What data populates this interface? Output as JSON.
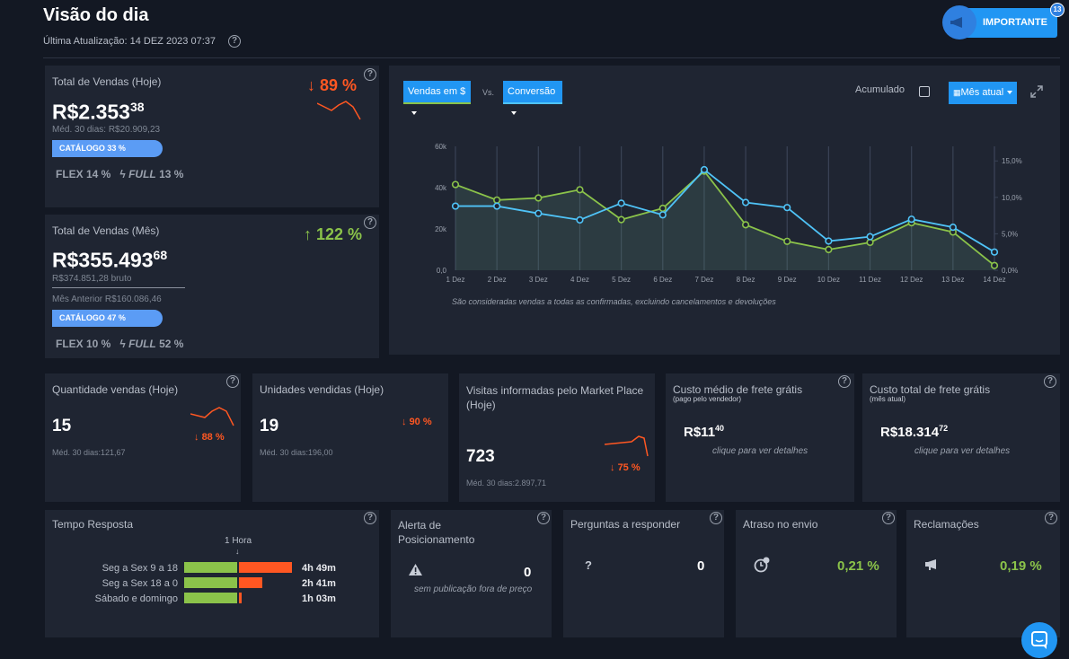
{
  "header": {
    "title": "Visão do dia",
    "updated": "Última Atualização: 14 DEZ 2023 07:37",
    "importante_label": "IMPORTANTE",
    "importante_badge": "13"
  },
  "sales_today": {
    "title": "Total de Vendas (Hoje)",
    "value_main": "R$2.353",
    "value_cents": "38",
    "avg": "Méd. 30 dias: R$20.909,23",
    "change": "89 %",
    "catalog": "CATÁLOGO 33 %",
    "catalog_level": 0.33,
    "flex": "FLEX 14 %",
    "full_label": "FULL",
    "full_value": "13 %"
  },
  "sales_month": {
    "title": "Total de Vendas (Mês)",
    "value_main": "R$355.493",
    "value_cents": "68",
    "gross": "R$374.851,28 bruto",
    "prev": "Mês Anterior R$160.086,46",
    "change": "122 %",
    "catalog": "CATÁLOGO 47 %",
    "catalog_level": 0.47,
    "flex": "FLEX 10 %",
    "full_label": "FULL",
    "full_value": "52 %"
  },
  "chart_controls": {
    "vendas_label": "Vendas em $",
    "vs_label": "Vs.",
    "conversao_label": "Conversão",
    "acumulado_label": "Acumulado",
    "period_label": "Mês atual",
    "note": "São consideradas vendas a todas as confirmadas, excluindo cancelamentos e devoluções"
  },
  "chart_data": {
    "type": "line",
    "x": [
      "1 Dez",
      "2 Dez",
      "3 Dez",
      "4 Dez",
      "5 Dez",
      "6 Dez",
      "7 Dez",
      "8 Dez",
      "9 Dez",
      "10 Dez",
      "11 Dez",
      "12 Dez",
      "13 Dez",
      "14 Dez"
    ],
    "yticks_left": [
      "0,0",
      "20k",
      "40k",
      "60k"
    ],
    "yticks_right": [
      "0,0%",
      "5,0%",
      "10,0%",
      "15,0%"
    ],
    "ylim_left": [
      0,
      60000
    ],
    "ylim_right": [
      0,
      17
    ],
    "series": [
      {
        "axis": "left",
        "color": "#8bc34a",
        "values": [
          41500,
          34000,
          35000,
          39000,
          24500,
          30000,
          48000,
          22000,
          14000,
          10000,
          13500,
          23000,
          18500,
          2300
        ]
      },
      {
        "axis": "right",
        "color": "#4fc3f7",
        "values": [
          8.8,
          8.8,
          7.8,
          6.9,
          9.2,
          7.6,
          13.8,
          9.3,
          8.6,
          4.0,
          4.6,
          7.0,
          5.9,
          2.5
        ]
      }
    ],
    "grid": true,
    "area_fill": true
  },
  "kpis": [
    {
      "title": "Quantidade vendas (Hoje)",
      "value": "15",
      "change": "88 %",
      "avg": "Méd. 30 dias:121,67"
    },
    {
      "title": "Unidades vendidas (Hoje)",
      "value": "19",
      "change": "90 %",
      "avg": "Méd. 30 dias:196,00"
    },
    {
      "title": "Visitas informadas pelo Market Place (Hoje)",
      "value": "723",
      "change": "75 %",
      "avg": "Méd. 30 dias:2.897,71"
    },
    {
      "title": "Custo médio de frete grátis",
      "subtitle": "(pago pelo vendedor)",
      "value_main": "R$11",
      "value_cents": "40",
      "link": "clique para ver detalhes"
    },
    {
      "title": "Custo total de frete grátis",
      "subtitle": "(mês atual)",
      "value_main": "R$18.314",
      "value_cents": "72",
      "link": "clique para ver detalhes"
    }
  ],
  "tempo": {
    "title": "Tempo Resposta",
    "marker": "1 Hora",
    "rows": [
      {
        "label": "Seg a Sex 9 a 18",
        "value": "4h 49m",
        "minutes": 289
      },
      {
        "label": "Seg a Sex 18 a 0",
        "value": "2h 41m",
        "minutes": 161
      },
      {
        "label": "Sábado e domingo",
        "value": "1h 03m",
        "minutes": 63
      }
    ]
  },
  "alerta": {
    "title": "Alerta de Posicionamento",
    "value": "0",
    "note": "sem publicação fora de preço"
  },
  "perguntas": {
    "title": "Perguntas a responder",
    "value": "0",
    "icon": "?"
  },
  "atraso": {
    "title": "Atraso no envio",
    "value": "0,21 %"
  },
  "reclamacoes": {
    "title": "Reclamações",
    "value": "0,19 %"
  },
  "colors": {
    "red": "#ff5722",
    "green": "#8bc34a",
    "blue": "#2196f3",
    "cyan": "#4fc3f7",
    "catalog": "#5b9cf5"
  }
}
